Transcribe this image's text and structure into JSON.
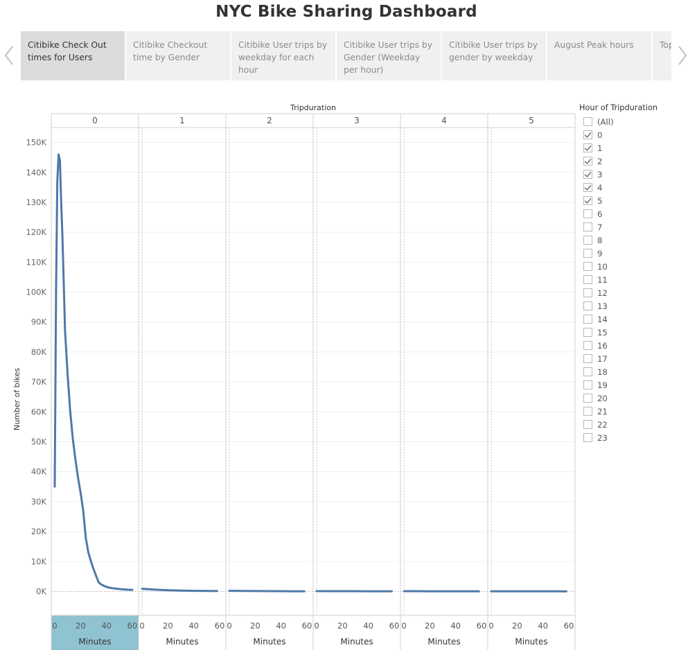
{
  "dashboard": {
    "title": "NYC Bike Sharing Dashboard"
  },
  "tabs": [
    {
      "label": "Citibike Check Out times for Users",
      "active": true
    },
    {
      "label": "Citibike Checkout time by Gender",
      "active": false
    },
    {
      "label": "Citibike User trips by weekday for each hour",
      "active": false
    },
    {
      "label": "Citibike User trips by Gender (Weekday per hour)",
      "active": false
    },
    {
      "label": "Citibike User trips by gender by weekday",
      "active": false
    },
    {
      "label": "August Peak hours",
      "active": false
    },
    {
      "label": "Top",
      "active": false
    }
  ],
  "nav": {
    "prev_icon": "chevron-left-icon",
    "next_icon": "chevron-right-icon"
  },
  "colors": {
    "line": "#4e79a7",
    "highlight_footer": "#8fc3d1",
    "active_tab": "#dcdcdc",
    "tab": "#f0f0f0"
  },
  "chart_data": {
    "type": "line",
    "column_header_title": "Tripduration",
    "panels": [
      "0",
      "1",
      "2",
      "3",
      "4",
      "5"
    ],
    "xlabel": "Minutes",
    "ylabel": "Number of bikes",
    "xlim": [
      0,
      60
    ],
    "ylim": [
      -8000,
      155000
    ],
    "x_ticks": [
      "0",
      "20",
      "40",
      "60"
    ],
    "y_ticks": [
      "0K",
      "10K",
      "20K",
      "30K",
      "40K",
      "50K",
      "60K",
      "70K",
      "80K",
      "90K",
      "100K",
      "110K",
      "120K",
      "130K",
      "140K",
      "150K"
    ],
    "y_tick_values": [
      0,
      10000,
      20000,
      30000,
      40000,
      50000,
      60000,
      70000,
      80000,
      90000,
      100000,
      110000,
      120000,
      130000,
      140000,
      150000
    ],
    "grid": true,
    "highlighted_panel": "0",
    "series": [
      {
        "panel": "0",
        "x": [
          0,
          1,
          2,
          3,
          4,
          5,
          6,
          8,
          10,
          12,
          14,
          16,
          18,
          20,
          22,
          24,
          26,
          28,
          30,
          32,
          34,
          36,
          38,
          40,
          42,
          44,
          46,
          48,
          50,
          52,
          54,
          56,
          58,
          60
        ],
        "y": [
          35000,
          100000,
          137000,
          146000,
          144000,
          130000,
          118000,
          87000,
          72000,
          60000,
          51000,
          44000,
          38000,
          33000,
          27000,
          18000,
          13000,
          10000,
          7500,
          5200,
          3000,
          2300,
          1900,
          1500,
          1300,
          1100,
          1000,
          900,
          800,
          700,
          650,
          600,
          550,
          500
        ]
      },
      {
        "panel": "1",
        "x": [
          0,
          10,
          20,
          30,
          40,
          50,
          58
        ],
        "y": [
          900,
          600,
          400,
          300,
          200,
          150,
          120
        ]
      },
      {
        "panel": "2",
        "x": [
          0,
          10,
          20,
          30,
          40,
          50,
          58
        ],
        "y": [
          200,
          150,
          120,
          100,
          80,
          60,
          50
        ]
      },
      {
        "panel": "3",
        "x": [
          0,
          10,
          20,
          30,
          40,
          50,
          58
        ],
        "y": [
          100,
          90,
          80,
          70,
          60,
          50,
          40
        ]
      },
      {
        "panel": "4",
        "x": [
          0,
          10,
          20,
          30,
          40,
          50,
          58
        ],
        "y": [
          80,
          70,
          60,
          50,
          40,
          30,
          30
        ]
      },
      {
        "panel": "5",
        "x": [
          0,
          10,
          20,
          30,
          40,
          50,
          58
        ],
        "y": [
          60,
          50,
          40,
          40,
          30,
          30,
          20
        ]
      }
    ]
  },
  "filter": {
    "title": "Hour of Tripduration",
    "items": [
      {
        "label": "(All)",
        "checked": false
      },
      {
        "label": "0",
        "checked": true
      },
      {
        "label": "1",
        "checked": true
      },
      {
        "label": "2",
        "checked": true
      },
      {
        "label": "3",
        "checked": true
      },
      {
        "label": "4",
        "checked": true
      },
      {
        "label": "5",
        "checked": true
      },
      {
        "label": "6",
        "checked": false
      },
      {
        "label": "7",
        "checked": false
      },
      {
        "label": "8",
        "checked": false
      },
      {
        "label": "9",
        "checked": false
      },
      {
        "label": "10",
        "checked": false
      },
      {
        "label": "11",
        "checked": false
      },
      {
        "label": "12",
        "checked": false
      },
      {
        "label": "13",
        "checked": false
      },
      {
        "label": "14",
        "checked": false
      },
      {
        "label": "15",
        "checked": false
      },
      {
        "label": "16",
        "checked": false
      },
      {
        "label": "17",
        "checked": false
      },
      {
        "label": "18",
        "checked": false
      },
      {
        "label": "19",
        "checked": false
      },
      {
        "label": "20",
        "checked": false
      },
      {
        "label": "21",
        "checked": false
      },
      {
        "label": "22",
        "checked": false
      },
      {
        "label": "23",
        "checked": false
      }
    ]
  }
}
